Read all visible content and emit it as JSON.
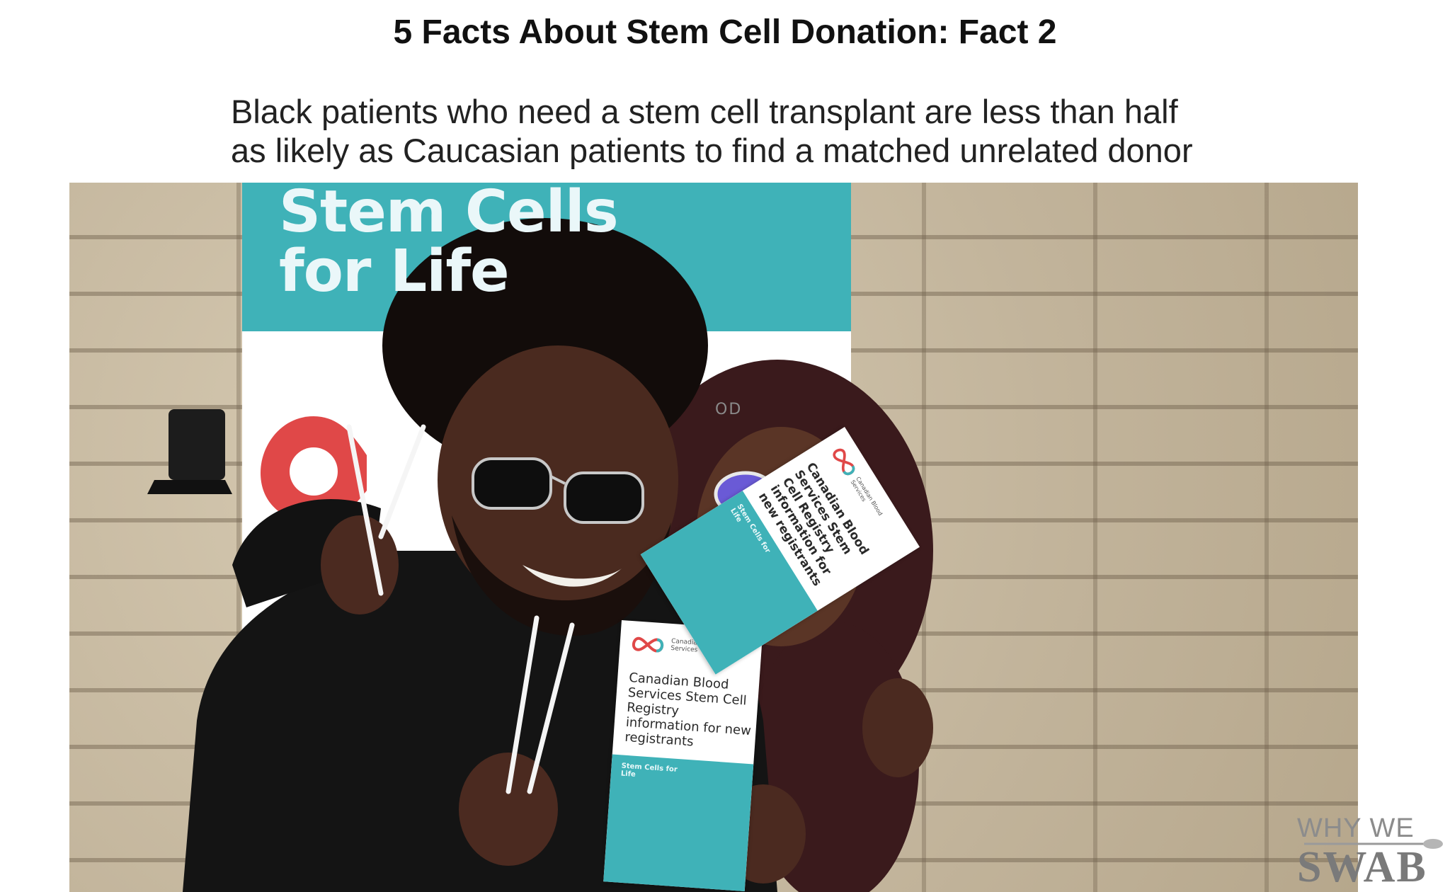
{
  "slide": {
    "title": "5 Facts About Stem Cell Donation: Fact 2",
    "fact_lines": [
      "Black patients who need a stem cell transplant are less than half",
      "as likely as Caucasian patients to find a matched unrelated donor"
    ]
  },
  "photo": {
    "banner": {
      "lines": [
        "Stem Cells",
        "for Life"
      ],
      "partial_text": "OD"
    },
    "brochure_front": {
      "org_name": "Canadian Blood Services",
      "title": "Canadian Blood Services Stem Cell Registry information for new registrants",
      "footer": "Stem Cells for Life"
    },
    "brochure_tilted": {
      "org_name": "Canadian Blood Services",
      "title": "Canadian Blood Services Stem Cell Registry information for new registrants",
      "footer": "Stem Cells for Life"
    }
  },
  "watermark": {
    "line1": "WHY WE",
    "line2": "SWAB"
  },
  "colors": {
    "banner_teal": "#3fb2b8",
    "logo_red": "#e04848",
    "text_dark": "#111111"
  }
}
